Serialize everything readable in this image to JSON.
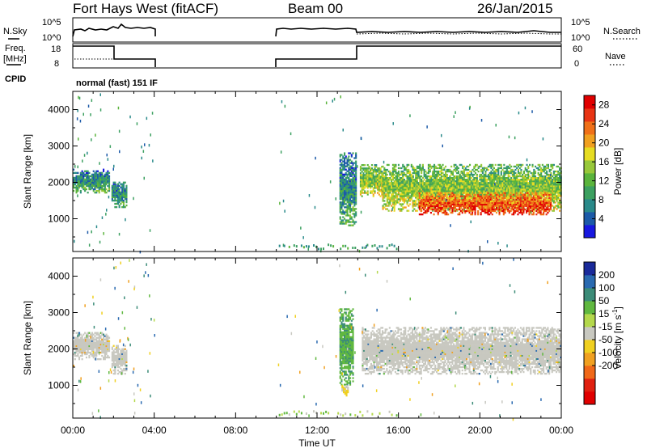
{
  "header": {
    "station": "Fort Hays West (fitACF)",
    "beam": "Beam 00",
    "date": "26/Jan/2015"
  },
  "status_panels": {
    "nsky_label": "N.Sky",
    "nsky_ticks": [
      "10^5",
      "10^0"
    ],
    "nsearch_label": "N.Search",
    "nsearch_ticks": [
      "10^5",
      "10^0"
    ],
    "freq_label_line1": "Freq.",
    "freq_label_line2": "[MHz]",
    "freq_ticks": [
      "18",
      "8"
    ],
    "nave_label": "Nave",
    "nave_ticks": [
      "60",
      "0"
    ],
    "cpid_label": "CPID",
    "cpid_text": "normal (fast) 151 IF"
  },
  "x_axis": {
    "label": "Time UT",
    "ticks": [
      "00:00",
      "04:00",
      "08:00",
      "12:00",
      "16:00",
      "20:00",
      "00:00"
    ]
  },
  "colors": {
    "data_gap": "#ffffff",
    "trace": "#000000",
    "ground_scatter": "#c8c8c0"
  },
  "chart_data": [
    {
      "type": "heatmap",
      "name": "power",
      "ylabel": "Slant Range [km]",
      "y_ticks": [
        "4000",
        "3000",
        "2000",
        "1000"
      ],
      "y_tick_values": [
        4000,
        3000,
        2000,
        1000
      ],
      "ylim": [
        100,
        4500
      ],
      "xlim_hours": [
        0,
        24
      ],
      "colorbar": {
        "label": "Power [dB]",
        "ticks": [
          "28",
          "24",
          "20",
          "16",
          "12",
          "8",
          "4"
        ],
        "tick_values": [
          28,
          24,
          20,
          16,
          12,
          8,
          4
        ],
        "range": [
          0,
          30
        ],
        "colors": [
          "#1818e0",
          "#1c5aa8",
          "#2a8a8a",
          "#3ca060",
          "#5ab43c",
          "#98c83a",
          "#e6dc22",
          "#f0a020",
          "#f07018",
          "#e83414",
          "#e00000"
        ]
      },
      "echo_regions": [
        {
          "t_start": 0.0,
          "t_end": 1.8,
          "r_low": 1700,
          "r_high": 2350,
          "value": 8
        },
        {
          "t_start": 1.9,
          "t_end": 2.6,
          "r_low": 1300,
          "r_high": 2000,
          "value": 8
        },
        {
          "t_start": 13.1,
          "t_end": 13.9,
          "r_low": 800,
          "r_high": 2800,
          "value": 8
        },
        {
          "t_start": 14.1,
          "t_end": 15.2,
          "r_low": 1600,
          "r_high": 2500,
          "value": 14
        },
        {
          "t_start": 15.2,
          "t_end": 24.0,
          "r_low": 1200,
          "r_high": 2500,
          "value": 14
        },
        {
          "t_start": 17.0,
          "t_end": 23.5,
          "r_low": 1100,
          "r_high": 1700,
          "value": 24
        }
      ]
    },
    {
      "type": "heatmap",
      "name": "velocity",
      "ylabel": "Slant Range [km]",
      "y_ticks": [
        "4000",
        "3000",
        "2000",
        "1000"
      ],
      "y_tick_values": [
        4000,
        3000,
        2000,
        1000
      ],
      "ylim": [
        100,
        4500
      ],
      "xlim_hours": [
        0,
        24
      ],
      "colorbar": {
        "label": "Velocity [m s",
        "label_sup": "-1",
        "label_close": "]",
        "ticks": [
          "200",
          "100",
          "50",
          "15",
          "-15",
          "-50",
          "-100",
          "-200"
        ],
        "tick_values": [
          200,
          100,
          50,
          15,
          -15,
          -50,
          -100,
          -200
        ],
        "colors": [
          "#1a2a9a",
          "#2a6ab0",
          "#3c8c78",
          "#60b840",
          "#b4d84c",
          "#c8c8c0",
          "#f0d020",
          "#f0a020",
          "#f06818",
          "#e02010",
          "#e00000"
        ]
      },
      "echo_regions": [
        {
          "t_start": 0.0,
          "t_end": 1.8,
          "r_low": 1700,
          "r_high": 2450,
          "value": "ground"
        },
        {
          "t_start": 1.9,
          "t_end": 2.6,
          "r_low": 1300,
          "r_high": 2100,
          "value": "ground"
        },
        {
          "t_start": 13.1,
          "t_end": 13.8,
          "r_low": 1000,
          "r_high": 3100,
          "value": 40
        },
        {
          "t_start": 13.2,
          "t_end": 13.5,
          "r_low": 700,
          "r_high": 1000,
          "value": -60
        },
        {
          "t_start": 14.2,
          "t_end": 24.0,
          "r_low": 1300,
          "r_high": 2600,
          "value": "ground"
        }
      ]
    }
  ]
}
